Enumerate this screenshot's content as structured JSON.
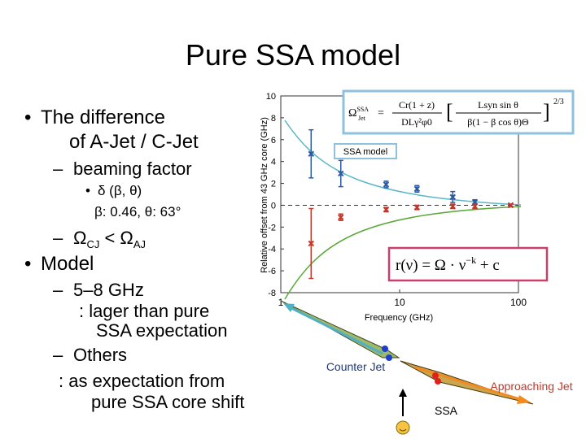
{
  "title": "Pure SSA model",
  "bullets": {
    "difference": [
      "The difference",
      "of A-Jet / C-Jet"
    ],
    "beaming": "beaming factor",
    "delta": [
      "δ (β, θ)",
      "β: 0.46, θ: 63°"
    ],
    "omega": [
      "Ω",
      "CJ",
      " < Ω",
      "AJ"
    ],
    "model": "Model",
    "ghz": [
      "5–8 GHz",
      ": lager than pure",
      "SSA expectation"
    ],
    "others": [
      "Others",
      ": as expectation from",
      "pure SSA core shift"
    ]
  },
  "chart": {
    "type": "scatter",
    "ylabel": "Relative offset from 43 GHz core   (GHz)",
    "xlabel": "Frequency   (GHz)",
    "xlog": true,
    "xlim": [
      1,
      100
    ],
    "xticks": [
      1,
      10,
      100
    ],
    "ylim": [
      -8,
      10
    ],
    "yticks": [
      10,
      8,
      6,
      4,
      2,
      0,
      -2,
      -4,
      -6,
      -8
    ],
    "legend": "SSA model",
    "series": [
      {
        "color": "#2c5aa0",
        "x": [
          1.8,
          3.2,
          7.7,
          14,
          28,
          43,
          86
        ],
        "values": [
          4.7,
          2.9,
          1.9,
          1.5,
          0.75,
          0.3,
          0
        ],
        "errors": [
          2.2,
          1.2,
          0.3,
          0.3,
          0.5,
          0.2,
          0.1
        ]
      },
      {
        "color": "#c0392b",
        "x": [
          1.8,
          3.2,
          7.7,
          14,
          28,
          43,
          86
        ],
        "values": [
          -3.5,
          -1.1,
          -0.4,
          -0.2,
          -0.1,
          -0.1,
          0
        ],
        "errors": [
          3.2,
          0.3,
          0.2,
          0.2,
          0.2,
          0.2,
          0.1
        ]
      }
    ]
  },
  "formula_ssa": {
    "lhs": "Ω",
    "lhs_sup": "SSA",
    "lhs_sub": "Jet",
    "num": "Cr(1 + z)",
    "den": "DLγ²φ0",
    "inner_num": "Lsyn sin θ",
    "inner_den": "β(1 − β cos θ)Θ",
    "power": "2/3"
  },
  "formula_fit": [
    "r(ν) = Ω · ν",
    "−k",
    " + c"
  ],
  "diagram": {
    "counter": "Counter Jet",
    "approaching": "Approaching Jet",
    "ssa": "SSA"
  }
}
